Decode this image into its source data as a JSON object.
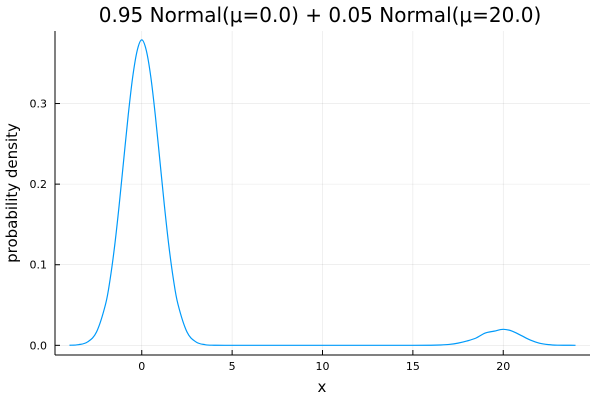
{
  "chart_data": {
    "type": "line",
    "title": "0.95 Normal(μ=0.0) + 0.05 Normal(μ=20.0)",
    "xlabel": "x",
    "ylabel": "probability density",
    "xlim": [
      -4.8,
      24.8
    ],
    "ylim": [
      -0.012,
      0.39
    ],
    "xticks": [
      0,
      5,
      10,
      15,
      20
    ],
    "xtick_labels": [
      "0",
      "5",
      "10",
      "15",
      "20"
    ],
    "yticks": [
      0.0,
      0.1,
      0.2,
      0.3
    ],
    "ytick_labels": [
      "0.0",
      "0.1",
      "0.2",
      "0.3"
    ],
    "grid": true,
    "legend": "none",
    "series_color": "#009AFA",
    "series": [
      {
        "x": [
          -4.0,
          -3.5,
          -3.0,
          -2.5,
          -2.0,
          -1.75,
          -1.5,
          -1.25,
          -1.0,
          -0.75,
          -0.5,
          -0.25,
          0.0,
          0.25,
          0.5,
          0.75,
          1.0,
          1.25,
          1.5,
          1.75,
          2.0,
          2.5,
          3.0,
          3.5,
          4.0,
          5.0,
          10.0,
          15.0,
          16.0,
          16.5,
          17.0,
          17.5,
          18.0,
          18.5,
          19.0,
          19.5,
          20.0,
          20.5,
          21.0,
          21.5,
          22.0,
          22.5,
          23.0,
          23.5,
          24.0
        ],
        "y": [
          0.0001,
          0.0008,
          0.0042,
          0.0167,
          0.0513,
          0.0821,
          0.1234,
          0.1739,
          0.2299,
          0.2854,
          0.3332,
          0.366,
          0.379,
          0.366,
          0.3332,
          0.2854,
          0.2299,
          0.1739,
          0.1234,
          0.0821,
          0.0513,
          0.0167,
          0.0042,
          0.0008,
          0.0001,
          0.0,
          0.0,
          0.0,
          0.0001,
          0.0004,
          0.0011,
          0.0027,
          0.0054,
          0.0091,
          0.0152,
          0.0176,
          0.0199,
          0.0176,
          0.0121,
          0.0065,
          0.0027,
          0.0009,
          0.0002,
          0.0001,
          0.0
        ]
      }
    ]
  }
}
